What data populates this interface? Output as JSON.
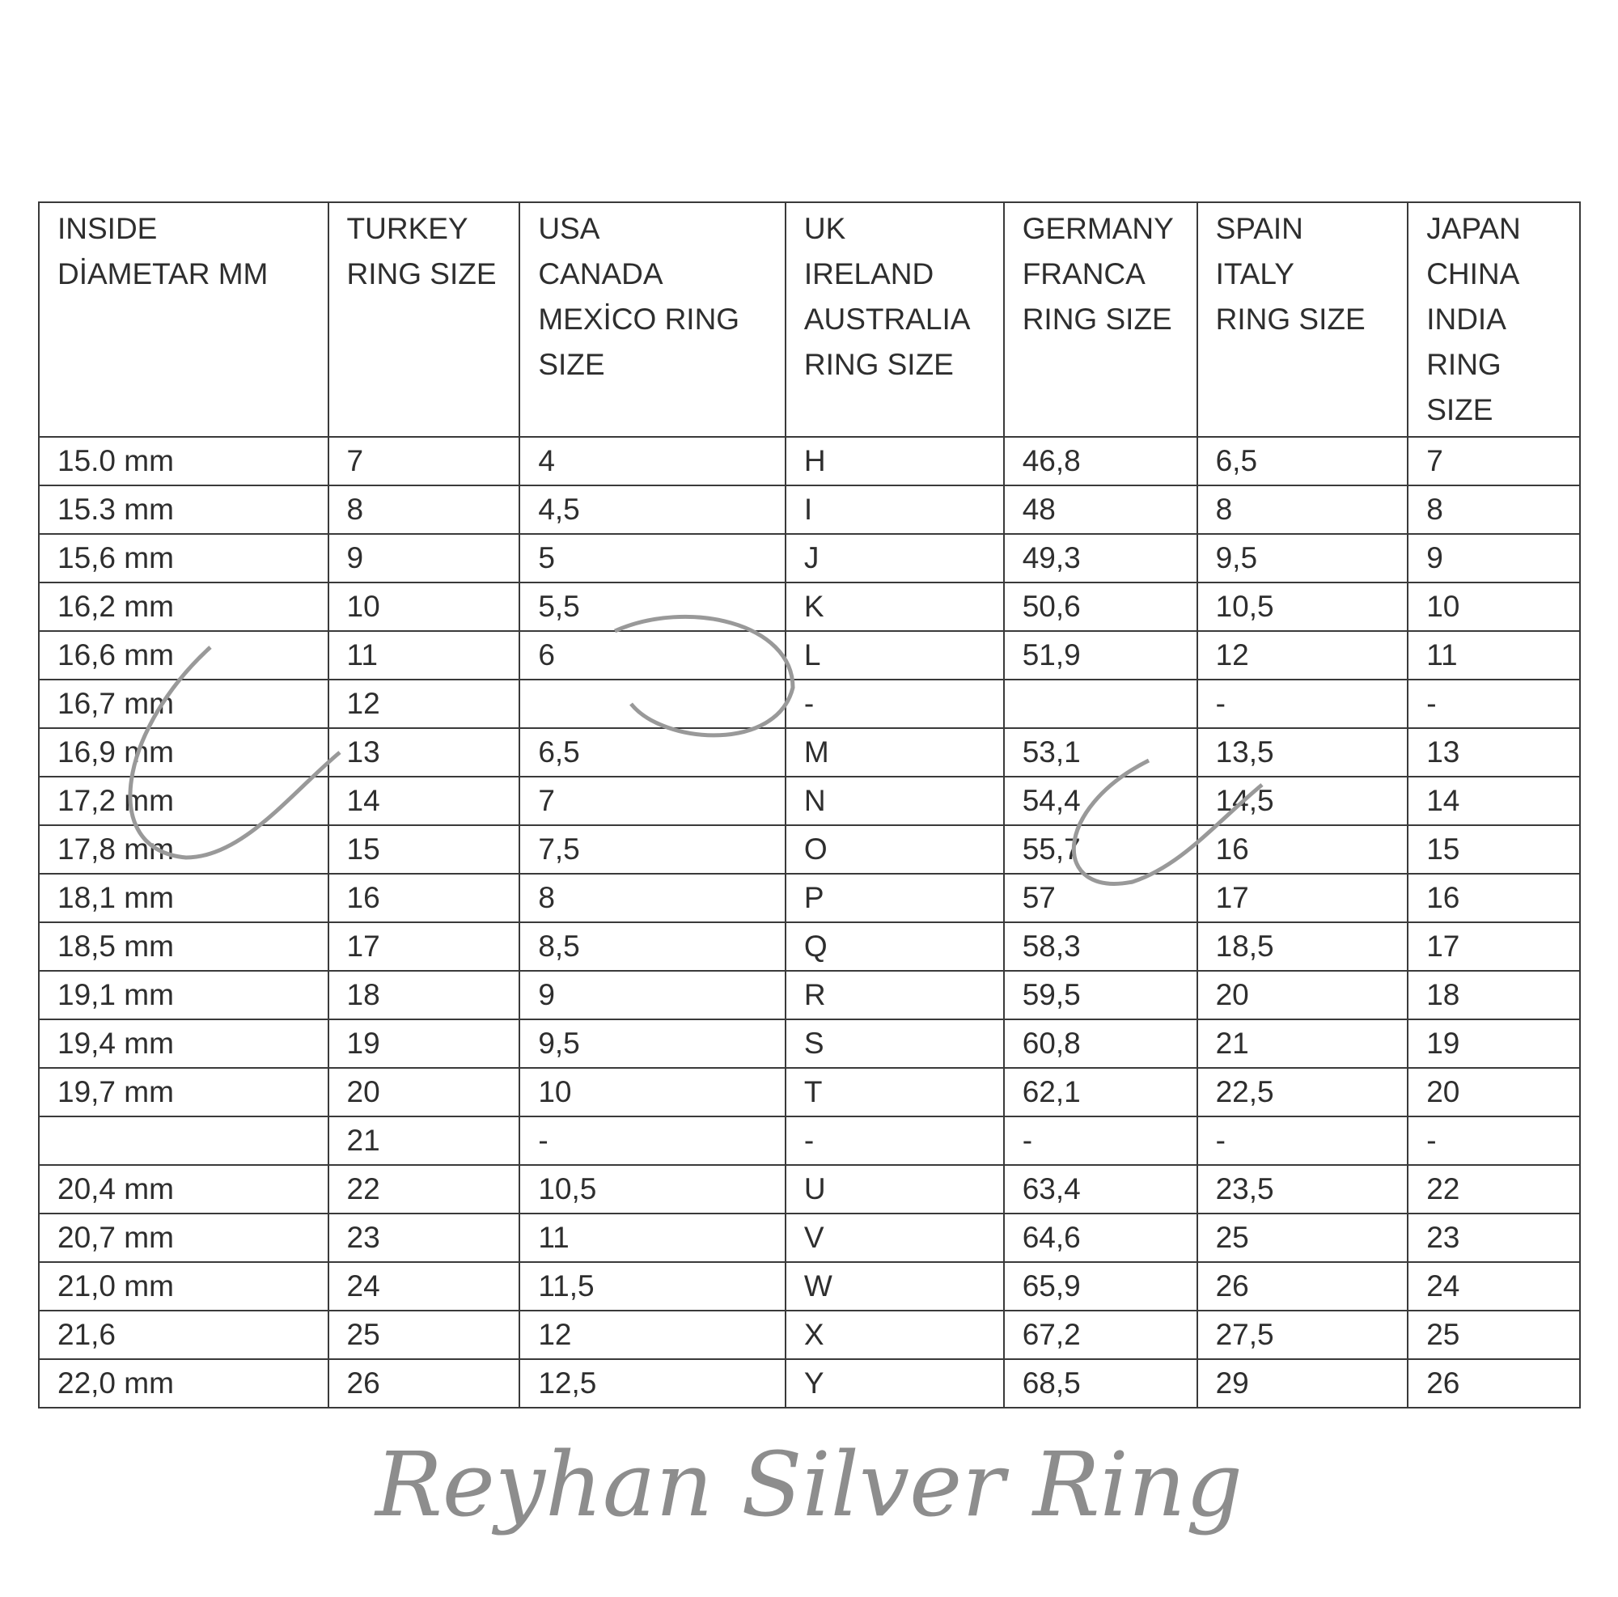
{
  "table": {
    "headers": [
      "INSIDE\nDİAMETAR MM",
      "TURKEY\nRING SIZE",
      "USA\nCANADA\nMEXİCO RING\nSIZE",
      "UK\nIRELAND\nAUSTRALIA\nRING SIZE",
      "GERMANY\nFRANCA\nRING SIZE",
      "SPAIN\nITALY\nRING SIZE",
      "JAPAN\nCHINA\nINDIA\nRING\nSIZE"
    ],
    "rows": [
      [
        "15.0 mm",
        "7",
        "4",
        "H",
        "46,8",
        "6,5",
        "7"
      ],
      [
        "15.3 mm",
        "8",
        "4,5",
        "I",
        "48",
        "8",
        "8"
      ],
      [
        "15,6 mm",
        "9",
        "5",
        "J",
        "49,3",
        "9,5",
        "9"
      ],
      [
        "16,2 mm",
        "10",
        "5,5",
        "K",
        "50,6",
        "10,5",
        "10"
      ],
      [
        "16,6 mm",
        "11",
        "6",
        "L",
        "51,9",
        "12",
        "11"
      ],
      [
        "16,7 mm",
        "12",
        "",
        "-",
        "",
        "-",
        "-"
      ],
      [
        "16,9 mm",
        "13",
        "6,5",
        "M",
        "53,1",
        "13,5",
        "13"
      ],
      [
        "17,2 mm",
        "14",
        "7",
        "N",
        "54,4",
        "14,5",
        "14"
      ],
      [
        "17,8 mm",
        "15",
        "7,5",
        "O",
        "55,7",
        "16",
        "15"
      ],
      [
        "18,1 mm",
        "16",
        "8",
        "P",
        "57",
        "17",
        "16"
      ],
      [
        "18,5 mm",
        "17",
        "8,5",
        "Q",
        "58,3",
        "18,5",
        "17"
      ],
      [
        "19,1 mm",
        "18",
        "9",
        "R",
        "59,5",
        "20",
        "18"
      ],
      [
        "19,4 mm",
        "19",
        "9,5",
        "S",
        "60,8",
        "21",
        "19"
      ],
      [
        "19,7 mm",
        "20",
        "10",
        "T",
        "62,1",
        "22,5",
        "20"
      ],
      [
        "",
        "21",
        "-",
        "-",
        "-",
        "-",
        "-"
      ],
      [
        "20,4 mm",
        "22",
        "10,5",
        "U",
        "63,4",
        "23,5",
        "22"
      ],
      [
        "20,7 mm",
        "23",
        "11",
        "V",
        "64,6",
        "25",
        "23"
      ],
      [
        "21,0 mm",
        "24",
        "11,5",
        "W",
        "65,9",
        "26",
        "24"
      ],
      [
        "21,6",
        "25",
        "12",
        "X",
        "67,2",
        "27,5",
        "25"
      ],
      [
        "22,0 mm",
        "26",
        "12,5",
        "Y",
        "68,5",
        "29",
        "26"
      ]
    ]
  },
  "watermark": {
    "text": "Reyhan Silver Ring"
  }
}
